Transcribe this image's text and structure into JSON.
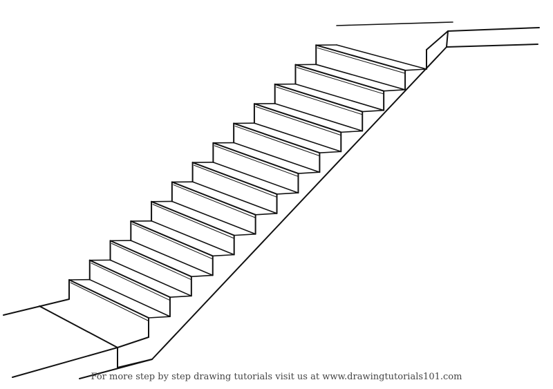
{
  "caption": {
    "text": "For more step by step drawing tutorials visit us at www.drawingtutorials101.com"
  },
  "drawing": {
    "subject": "staircase",
    "step_count": 13,
    "line_color": "#111111",
    "background_color": "#ffffff"
  }
}
